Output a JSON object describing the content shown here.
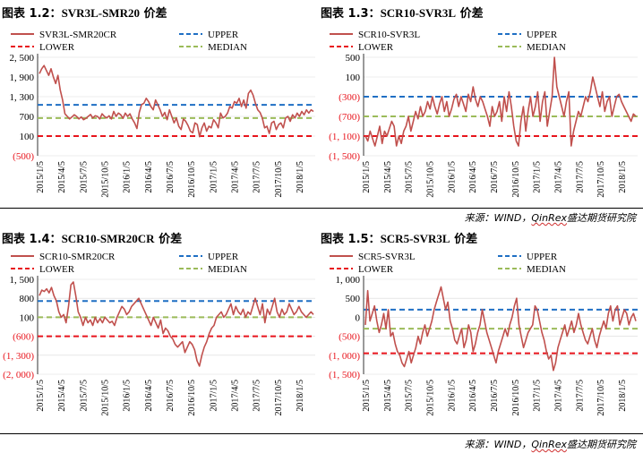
{
  "source_note": {
    "prefix": "来源：WIND，",
    "brand": "QinRex",
    "suffix": "盛达期货研究院"
  },
  "colors": {
    "series": "#c0504d",
    "upper": "#1f6fc4",
    "lower": "#e8141c",
    "median": "#9bbb59",
    "axis": "#000000",
    "grid": "#d9d9d9"
  },
  "panels": [
    {
      "id": "p12",
      "title_prefix": "图表 1.2：",
      "title_code": "SVR3L-SMR20",
      "title_suffix": " 价差",
      "legend": {
        "series": "SVR3L-SMR20CR",
        "upper": "UPPER",
        "lower": "LOWER",
        "median": "MEDIAN"
      },
      "chart_data": {
        "type": "line",
        "ylim": [
          -500,
          2500
        ],
        "yticks": [
          2500,
          1900,
          1300,
          700,
          100,
          -500
        ],
        "ytick_labels": [
          "2, 500",
          "1, 900",
          "1, 300",
          "700",
          "100",
          "(500)"
        ],
        "xticks": [
          "2015/1/5",
          "2015/4/5",
          "2015/7/5",
          "2015/10/5",
          "2016/1/5",
          "2016/4/5",
          "2016/7/5",
          "2016/10/5",
          "2017/1/5",
          "2017/4/5",
          "2017/7/5",
          "2017/10/5",
          "2018/1/5"
        ],
        "upper": 1050,
        "median": 650,
        "lower": 100,
        "series_values": [
          2000,
          2150,
          2250,
          2100,
          1950,
          2150,
          1900,
          1700,
          1950,
          1500,
          1200,
          780,
          700,
          620,
          680,
          750,
          700,
          620,
          680,
          600,
          640,
          700,
          760,
          650,
          720,
          700,
          620,
          780,
          700,
          650,
          720,
          620,
          850,
          700,
          800,
          750,
          640,
          800,
          700,
          780,
          620,
          500,
          330,
          820,
          1060,
          1100,
          1250,
          1150,
          1000,
          900,
          1200,
          1050,
          900,
          700,
          820,
          600,
          900,
          700,
          500,
          650,
          400,
          300,
          620,
          550,
          420,
          250,
          200,
          500,
          450,
          80,
          350,
          500,
          250,
          400,
          350,
          600,
          500,
          350,
          800,
          650,
          700,
          800,
          1000,
          950,
          1150,
          1100,
          1250,
          1000,
          1200,
          950,
          1400,
          1500,
          1350,
          1100,
          900,
          820,
          650,
          350,
          400,
          180,
          500,
          550,
          300,
          450,
          500,
          350,
          650,
          700,
          550,
          750,
          650,
          800,
          700,
          850,
          750,
          900,
          800,
          900,
          850
        ]
      }
    },
    {
      "id": "p13",
      "title_prefix": "图表 1.3：",
      "title_code": "SCR10-SVR3L",
      "title_suffix": " 价差",
      "legend": {
        "series": "SCR10-SVR3L",
        "upper": "UPPER",
        "lower": "LOWER",
        "median": "MEDIAN"
      },
      "chart_data": {
        "type": "line",
        "ylim": [
          -1500,
          500
        ],
        "yticks": [
          500,
          100,
          -300,
          -700,
          -1100,
          -1500
        ],
        "ytick_labels": [
          "500",
          "100",
          "(300)",
          "(700)",
          "(1, 100)",
          "(1, 500)"
        ],
        "xticks": [
          "2015/1/5",
          "2015/4/5",
          "2015/7/5",
          "2015/10/5",
          "2016/1/5",
          "2016/4/5",
          "2016/7/5",
          "2016/10/5",
          "2017/1/5",
          "2017/4/5",
          "2017/7/5",
          "2017/10/5",
          "2018/1/5"
        ],
        "upper": -300,
        "median": -700,
        "lower": -1100,
        "series_values": [
          -1100,
          -1200,
          -1000,
          -1150,
          -1300,
          -1100,
          -900,
          -1250,
          -1000,
          -1100,
          -950,
          -800,
          -900,
          -1300,
          -1100,
          -1250,
          -1000,
          -900,
          -700,
          -1000,
          -800,
          -600,
          -750,
          -500,
          -700,
          -600,
          -400,
          -550,
          -300,
          -500,
          -650,
          -450,
          -300,
          -600,
          -400,
          -700,
          -550,
          -350,
          -250,
          -500,
          -300,
          -450,
          -600,
          -250,
          -400,
          -100,
          -350,
          -500,
          -300,
          -400,
          -550,
          -700,
          -900,
          -500,
          -700,
          -600,
          -400,
          -800,
          -300,
          -600,
          -200,
          -500,
          -900,
          -1200,
          -1300,
          -800,
          -500,
          -1000,
          -600,
          -300,
          -700,
          -500,
          -200,
          -800,
          -400,
          -200,
          -900,
          -600,
          -300,
          500,
          -100,
          -300,
          -500,
          -700,
          -400,
          -200,
          -1300,
          -1000,
          -800,
          -600,
          -700,
          -500,
          -300,
          -400,
          -200,
          100,
          -100,
          -300,
          -500,
          -200,
          -600,
          -400,
          -300,
          -700,
          -500,
          -300,
          -250,
          -400,
          -500,
          -600,
          -700,
          -800,
          -650,
          -700
        ]
      }
    },
    {
      "id": "p14",
      "title_prefix": "图表 1.4：",
      "title_code": "SCR10-SMR20CR",
      "title_suffix": " 价差",
      "legend": {
        "series": "SCR10-SMR20CR",
        "upper": "UPPER",
        "lower": "LOWER",
        "median": "MEDIAN"
      },
      "chart_data": {
        "type": "line",
        "ylim": [
          -2000,
          1500
        ],
        "yticks": [
          1500,
          800,
          100,
          -600,
          -1300,
          -2000
        ],
        "ytick_labels": [
          "1, 500",
          "800",
          "100",
          "(600)",
          "(1, 300)",
          "(2, 000)"
        ],
        "xticks": [
          "2015/1/5",
          "2015/4/5",
          "2015/7/5",
          "2015/10/5",
          "2016/1/5",
          "2016/4/5",
          "2016/7/5",
          "2016/10/5",
          "2017/1/5",
          "2017/4/5",
          "2017/7/5",
          "2017/10/5",
          "2018/1/5"
        ],
        "upper": 700,
        "median": 100,
        "lower": -600,
        "series_values": [
          900,
          1100,
          1050,
          1150,
          1000,
          1200,
          900,
          700,
          300,
          100,
          200,
          -100,
          500,
          1300,
          1400,
          900,
          300,
          100,
          -200,
          100,
          -100,
          0,
          -200,
          100,
          -100,
          50,
          -100,
          100,
          0,
          -100,
          -50,
          -200,
          100,
          300,
          500,
          400,
          200,
          300,
          500,
          600,
          700,
          800,
          600,
          400,
          200,
          0,
          -200,
          100,
          -100,
          -300,
          0,
          -500,
          -300,
          -400,
          -600,
          -700,
          -900,
          -1000,
          -900,
          -800,
          -1200,
          -1000,
          -800,
          -900,
          -1100,
          -1500,
          -1700,
          -1300,
          -1000,
          -800,
          -500,
          -300,
          -200,
          100,
          200,
          300,
          100,
          200,
          400,
          600,
          200,
          500,
          300,
          200,
          400,
          100,
          300,
          200,
          500,
          800,
          500,
          200,
          600,
          -100,
          400,
          200,
          500,
          800,
          300,
          100,
          400,
          200,
          300,
          600,
          400,
          200,
          300,
          500,
          300,
          200,
          100,
          200,
          300,
          200
        ]
      }
    },
    {
      "id": "p15",
      "title_prefix": "图表 1.5：",
      "title_code": "SCR5-SVR3L",
      "title_suffix": " 价差",
      "legend": {
        "series": "SCR5-SVR3L",
        "upper": "UPPER",
        "lower": "LOWER",
        "median": "MEDIAN"
      },
      "chart_data": {
        "type": "line",
        "ylim": [
          -1500,
          1000
        ],
        "yticks": [
          1000,
          500,
          0,
          -500,
          -1000,
          -1500
        ],
        "ytick_labels": [
          "1, 000",
          "500",
          "0",
          "(500)",
          "(1, 000)",
          "(1, 500)"
        ],
        "xticks": [
          "2015/1/5",
          "2015/4/5",
          "2015/7/5",
          "2015/10/5",
          "2016/1/5",
          "2016/4/5",
          "2016/7/5",
          "2016/10/5",
          "2017/1/5",
          "2017/4/5",
          "2017/7/5",
          "2017/10/5",
          "2018/1/5"
        ],
        "upper": 200,
        "median": -300,
        "lower": -950,
        "series_values": [
          -200,
          700,
          -100,
          100,
          300,
          -100,
          -400,
          -200,
          100,
          -300,
          200,
          -500,
          -400,
          -700,
          -900,
          -1000,
          -1200,
          -1300,
          -1100,
          -900,
          -1200,
          -1000,
          -800,
          -500,
          -700,
          -400,
          -200,
          -500,
          -300,
          -100,
          200,
          400,
          600,
          800,
          500,
          200,
          400,
          -100,
          -300,
          -600,
          -700,
          -500,
          -300,
          -800,
          -600,
          -200,
          -400,
          -900,
          -700,
          -400,
          -200,
          200,
          -100,
          -400,
          -600,
          -800,
          -1000,
          -1200,
          -900,
          -700,
          -500,
          -300,
          -500,
          -200,
          0,
          300,
          500,
          -200,
          -500,
          -800,
          -600,
          -400,
          -300,
          -200,
          300,
          200,
          -100,
          -400,
          -600,
          -900,
          -1100,
          -1000,
          -1400,
          -1200,
          -800,
          -600,
          -400,
          -200,
          -500,
          -300,
          -100,
          -400,
          -200,
          100,
          -200,
          -400,
          -600,
          -700,
          -500,
          -300,
          -600,
          -800,
          -500,
          -300,
          -100,
          -300,
          100,
          300,
          -100,
          200,
          300,
          -200,
          0,
          200,
          100,
          -200,
          0,
          100,
          -100
        ]
      }
    }
  ]
}
